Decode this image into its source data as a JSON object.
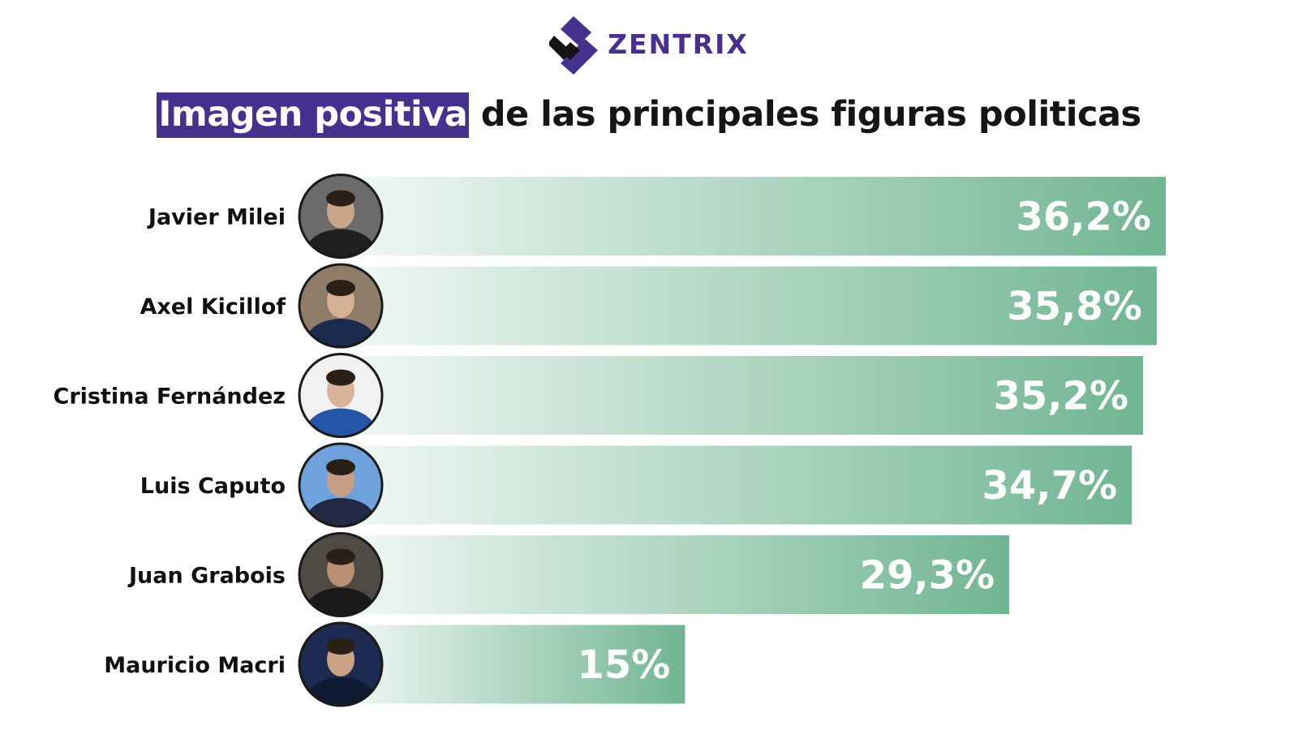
{
  "brand": {
    "name": "ZENTRIX",
    "icon": "zentrix-stripes-logo-icon",
    "color": "#46318f"
  },
  "title": {
    "highlight": "Imagen positiva",
    "rest": "de las principales figuras politicas"
  },
  "chart_data": {
    "type": "bar",
    "orientation": "horizontal",
    "title": "Imagen positiva de las principales figuras politicas",
    "xlabel": "",
    "ylabel": "",
    "xlim": [
      0,
      36.2
    ],
    "grid": false,
    "legend": "none",
    "bar_gradient": [
      "#f1f8f4",
      "#70b592"
    ],
    "categories": [
      "Javier Milei",
      "Axel Kicillof",
      "Cristina Fernández",
      "Luis Caputo",
      "Juan Grabois",
      "Mauricio Macri"
    ],
    "values": [
      36.2,
      35.8,
      35.2,
      34.7,
      29.3,
      15
    ],
    "value_labels": [
      "36,2%",
      "35,8%",
      "35,2%",
      "34,7%",
      "29,3%",
      "15%"
    ],
    "avatars": [
      "javier-milei-photo",
      "axel-kicillof-photo",
      "cristina-fernandez-photo",
      "luis-caputo-photo",
      "juan-grabois-photo",
      "mauricio-macri-photo"
    ]
  }
}
